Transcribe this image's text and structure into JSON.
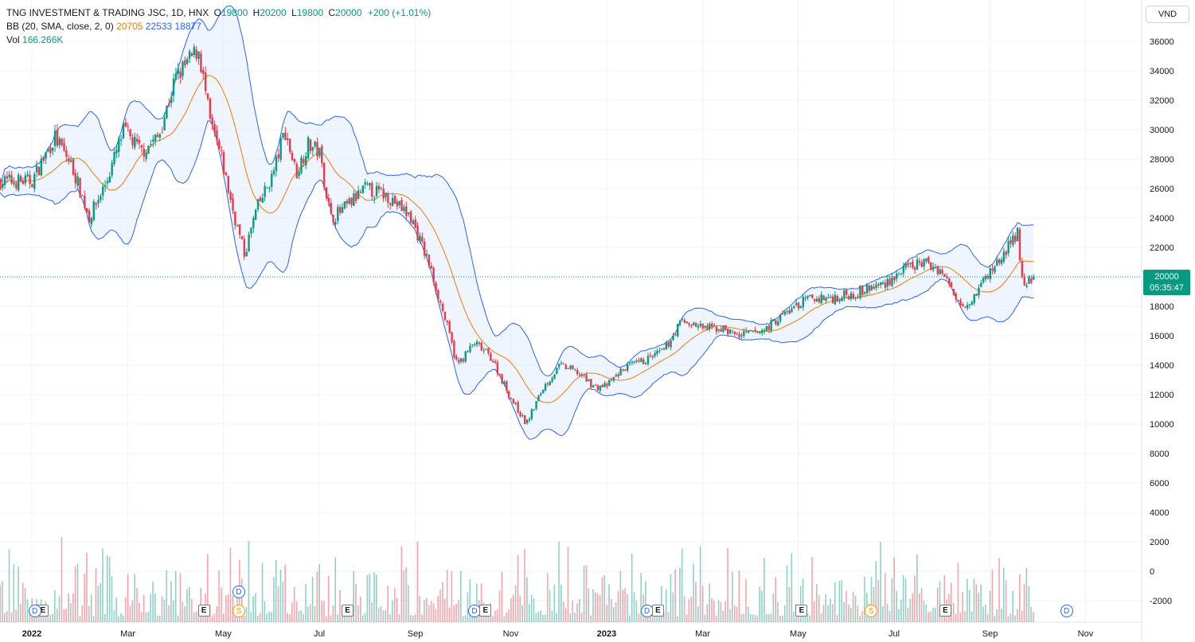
{
  "legend": {
    "symbol": "TNG INVESTMENT & TRADING JSC, 1D, HNX",
    "o_label": "O",
    "o_value": "19800",
    "h_label": "H",
    "h_value": "20200",
    "l_label": "L",
    "l_value": "19800",
    "c_label": "C",
    "c_value": "20000",
    "change": "+200 (+1.01%)",
    "bb_label": "BB (20, SMA, close, 2, 0)",
    "bb_basis": "20705",
    "bb_upper": "22533",
    "bb_lower": "18877",
    "vol_label": "Vol",
    "vol_value": "166.266K"
  },
  "currency_button": "VND",
  "last_price": {
    "price": "20000",
    "countdown": "05:35:47"
  },
  "colors": {
    "up": "#089981",
    "down": "#f23645",
    "basis": "#f57c00",
    "band": "#2962ff",
    "band_fill": "#e3effd"
  },
  "chart_data": {
    "type": "candlestick",
    "title": "TNG INVESTMENT & TRADING JSC, 1D, HNX",
    "price_axis": {
      "ticks": [
        "36000",
        "34000",
        "32000",
        "30000",
        "28000",
        "26000",
        "24000",
        "22000",
        "20000",
        "18000",
        "16000",
        "14000",
        "12000",
        "10000",
        "8000",
        "6000",
        "4000",
        "2000",
        "0",
        "-2000"
      ],
      "range": [
        -2000,
        36000
      ]
    },
    "time_axis": {
      "labels": [
        "2022",
        "Mar",
        "May",
        "Jul",
        "Sep",
        "Nov",
        "2023",
        "Mar",
        "May",
        "Jul",
        "Sep",
        "Nov"
      ],
      "label_positions": [
        2022.0,
        2022.167,
        2022.333,
        2022.5,
        2022.667,
        2022.833,
        2023.0,
        2023.167,
        2023.333,
        2023.5,
        2023.667,
        2023.833
      ]
    },
    "price_path": [
      [
        2022.0,
        26500
      ],
      [
        2022.04,
        29500
      ],
      [
        2022.07,
        27500
      ],
      [
        2022.1,
        24000
      ],
      [
        2022.13,
        26500
      ],
      [
        2022.16,
        30000
      ],
      [
        2022.19,
        28500
      ],
      [
        2022.22,
        29500
      ],
      [
        2022.25,
        33500
      ],
      [
        2022.29,
        35500
      ],
      [
        2022.31,
        30500
      ],
      [
        2022.33,
        28000
      ],
      [
        2022.35,
        24500
      ],
      [
        2022.37,
        21500
      ],
      [
        2022.39,
        24500
      ],
      [
        2022.42,
        27000
      ],
      [
        2022.44,
        30000
      ],
      [
        2022.46,
        27000
      ],
      [
        2022.48,
        29000
      ],
      [
        2022.5,
        28500
      ],
      [
        2022.52,
        24000
      ],
      [
        2022.54,
        24500
      ],
      [
        2022.58,
        26000
      ],
      [
        2022.62,
        25500
      ],
      [
        2022.66,
        24000
      ],
      [
        2022.69,
        21000
      ],
      [
        2022.72,
        17000
      ],
      [
        2022.74,
        14000
      ],
      [
        2022.77,
        15500
      ],
      [
        2022.8,
        14500
      ],
      [
        2022.83,
        12000
      ],
      [
        2022.86,
        10000
      ],
      [
        2022.89,
        12500
      ],
      [
        2022.92,
        14000
      ],
      [
        2022.95,
        13500
      ],
      [
        2022.98,
        12500
      ],
      [
        2023.0,
        12600
      ],
      [
        2023.03,
        13800
      ],
      [
        2023.06,
        14200
      ],
      [
        2023.1,
        15000
      ],
      [
        2023.13,
        17000
      ],
      [
        2023.17,
        16500
      ],
      [
        2023.2,
        16500
      ],
      [
        2023.23,
        16000
      ],
      [
        2023.27,
        16300
      ],
      [
        2023.31,
        17500
      ],
      [
        2023.35,
        18500
      ],
      [
        2023.4,
        18600
      ],
      [
        2023.44,
        19000
      ],
      [
        2023.48,
        19500
      ],
      [
        2023.52,
        20500
      ],
      [
        2023.55,
        21000
      ],
      [
        2023.58,
        20500
      ],
      [
        2023.61,
        18500
      ],
      [
        2023.63,
        18200
      ],
      [
        2023.66,
        20000
      ],
      [
        2023.69,
        21500
      ],
      [
        2023.715,
        23000
      ],
      [
        2023.725,
        19000
      ],
      [
        2023.74,
        20000
      ]
    ],
    "last_close": 20000,
    "indicators": {
      "bollinger_bands": {
        "length": 20,
        "source": "close",
        "stddev": 2,
        "basis": 20705,
        "upper": 22533,
        "lower": 18877
      },
      "volume": {
        "last": "166.266K",
        "scale_max_label": "6000"
      }
    },
    "events": [
      {
        "type": "E",
        "x": 2022.02
      },
      {
        "type": "E",
        "x": 2022.3
      },
      {
        "type": "S",
        "x": 2022.36
      },
      {
        "type": "D",
        "x": 2022.36
      },
      {
        "type": "E",
        "x": 2022.55
      },
      {
        "type": "D",
        "x": 2022.77
      },
      {
        "type": "E",
        "x": 2022.79
      },
      {
        "type": "D",
        "x": 2023.07
      },
      {
        "type": "E",
        "x": 2023.09
      },
      {
        "type": "E",
        "x": 2023.34
      },
      {
        "type": "S",
        "x": 2023.46
      },
      {
        "type": "E",
        "x": 2023.59
      },
      {
        "type": "D",
        "x": 2023.8
      },
      {
        "type": "D",
        "x": 2022.005
      }
    ],
    "grid": true
  }
}
